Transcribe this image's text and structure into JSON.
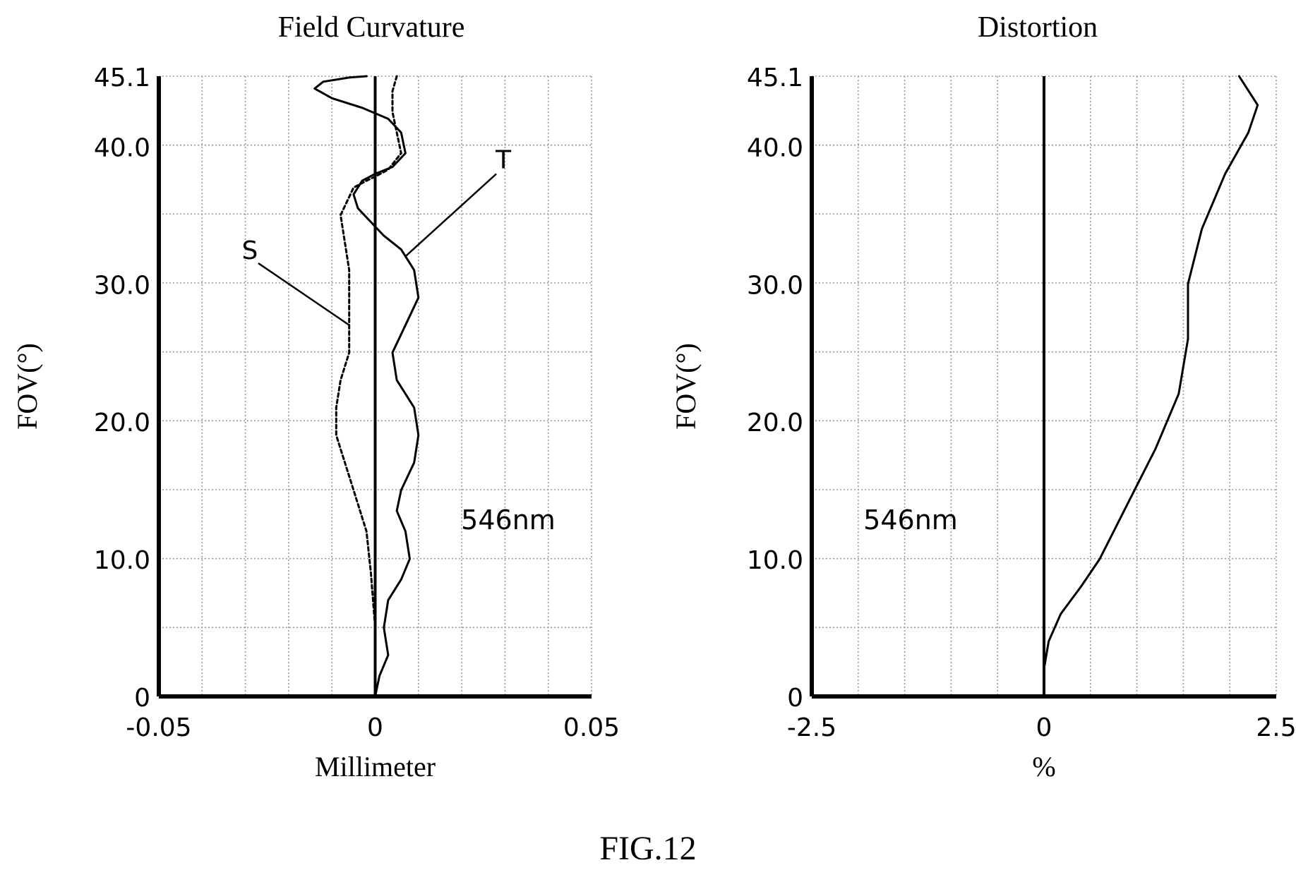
{
  "figure_label": "FIG.12",
  "colors": {
    "ink": "#000000",
    "grid": "#9a9a9a",
    "background": "#ffffff"
  },
  "chart_data": [
    {
      "type": "line",
      "title": "Field Curvature",
      "xlabel": "Millimeter",
      "ylabel": "FOV(°)",
      "xlim": [
        -0.05,
        0.05
      ],
      "ylim": [
        0,
        45.1
      ],
      "xticks": [
        -0.05,
        0,
        0.05
      ],
      "xtick_labels": [
        "-0.05",
        "0",
        "0.05"
      ],
      "yticks": [
        0,
        10,
        20,
        30,
        40,
        45.1
      ],
      "ytick_labels": [
        "0",
        "10.0",
        "20.0",
        "30.0",
        "40.0",
        "45.1"
      ],
      "grid": true,
      "annotation": "546nm",
      "series": [
        {
          "name": "T",
          "style": "solid",
          "points": [
            [
              0.0,
              0
            ],
            [
              0.001,
              1.5
            ],
            [
              0.003,
              3
            ],
            [
              0.002,
              5
            ],
            [
              0.003,
              7
            ],
            [
              0.006,
              8.5
            ],
            [
              0.008,
              10
            ],
            [
              0.007,
              12
            ],
            [
              0.005,
              13.5
            ],
            [
              0.006,
              15
            ],
            [
              0.009,
              17
            ],
            [
              0.01,
              19
            ],
            [
              0.009,
              21
            ],
            [
              0.005,
              23
            ],
            [
              0.004,
              25
            ],
            [
              0.007,
              27
            ],
            [
              0.01,
              29
            ],
            [
              0.009,
              31
            ],
            [
              0.006,
              32.5
            ],
            [
              0.002,
              33.5
            ],
            [
              -0.001,
              34.5
            ],
            [
              -0.004,
              35.5
            ],
            [
              -0.005,
              36.5
            ],
            [
              -0.003,
              37.5
            ],
            [
              0.0,
              38
            ],
            [
              0.004,
              38.5
            ],
            [
              0.007,
              39.5
            ],
            [
              0.006,
              41
            ],
            [
              0.003,
              42
            ],
            [
              -0.003,
              42.8
            ],
            [
              -0.01,
              43.5
            ],
            [
              -0.014,
              44.2
            ],
            [
              -0.012,
              44.7
            ],
            [
              -0.006,
              45.0
            ],
            [
              -0.002,
              45.1
            ]
          ]
        },
        {
          "name": "S",
          "style": "dashed",
          "points": [
            [
              0.0,
              0
            ],
            [
              0.0,
              5
            ],
            [
              -0.001,
              9
            ],
            [
              -0.002,
              12
            ],
            [
              -0.005,
              15
            ],
            [
              -0.007,
              17
            ],
            [
              -0.009,
              19
            ],
            [
              -0.009,
              21
            ],
            [
              -0.008,
              23
            ],
            [
              -0.006,
              25
            ],
            [
              -0.006,
              27
            ],
            [
              -0.006,
              29
            ],
            [
              -0.006,
              31
            ],
            [
              -0.007,
              33
            ],
            [
              -0.008,
              35
            ],
            [
              -0.005,
              37
            ],
            [
              -0.002,
              37.5
            ],
            [
              0.0,
              37.8
            ],
            [
              0.003,
              38.3
            ],
            [
              0.006,
              39.5
            ],
            [
              0.005,
              41
            ],
            [
              0.004,
              42.5
            ],
            [
              0.004,
              44
            ],
            [
              0.005,
              45.1
            ]
          ]
        }
      ],
      "series_labels": [
        {
          "text": "T",
          "point": [
            0.007,
            32.0
          ],
          "label_at": [
            0.028,
            38.0
          ]
        },
        {
          "text": "S",
          "point": [
            -0.006,
            27.0
          ],
          "label_at": [
            -0.027,
            31.5
          ]
        }
      ]
    },
    {
      "type": "line",
      "title": "Distortion",
      "xlabel": "%",
      "ylabel": "FOV(°)",
      "xlim": [
        -2.5,
        2.5
      ],
      "ylim": [
        0,
        45.1
      ],
      "xticks": [
        -2.5,
        0,
        2.5
      ],
      "xtick_labels": [
        "-2.5",
        "0",
        "2.5"
      ],
      "yticks": [
        0,
        10,
        20,
        30,
        40,
        45.1
      ],
      "ytick_labels": [
        "0",
        "10.0",
        "20.0",
        "30.0",
        "40.0",
        "45.1"
      ],
      "grid": true,
      "annotation": "546nm",
      "series": [
        {
          "name": "",
          "style": "solid",
          "points": [
            [
              0.0,
              2
            ],
            [
              0.05,
              4
            ],
            [
              0.18,
              6
            ],
            [
              0.4,
              8
            ],
            [
              0.6,
              10
            ],
            [
              0.9,
              14
            ],
            [
              1.2,
              18
            ],
            [
              1.45,
              22
            ],
            [
              1.55,
              26
            ],
            [
              1.55,
              30
            ],
            [
              1.7,
              34
            ],
            [
              1.95,
              38
            ],
            [
              2.2,
              41
            ],
            [
              2.3,
              43
            ],
            [
              2.1,
              45.1
            ]
          ]
        }
      ]
    }
  ]
}
